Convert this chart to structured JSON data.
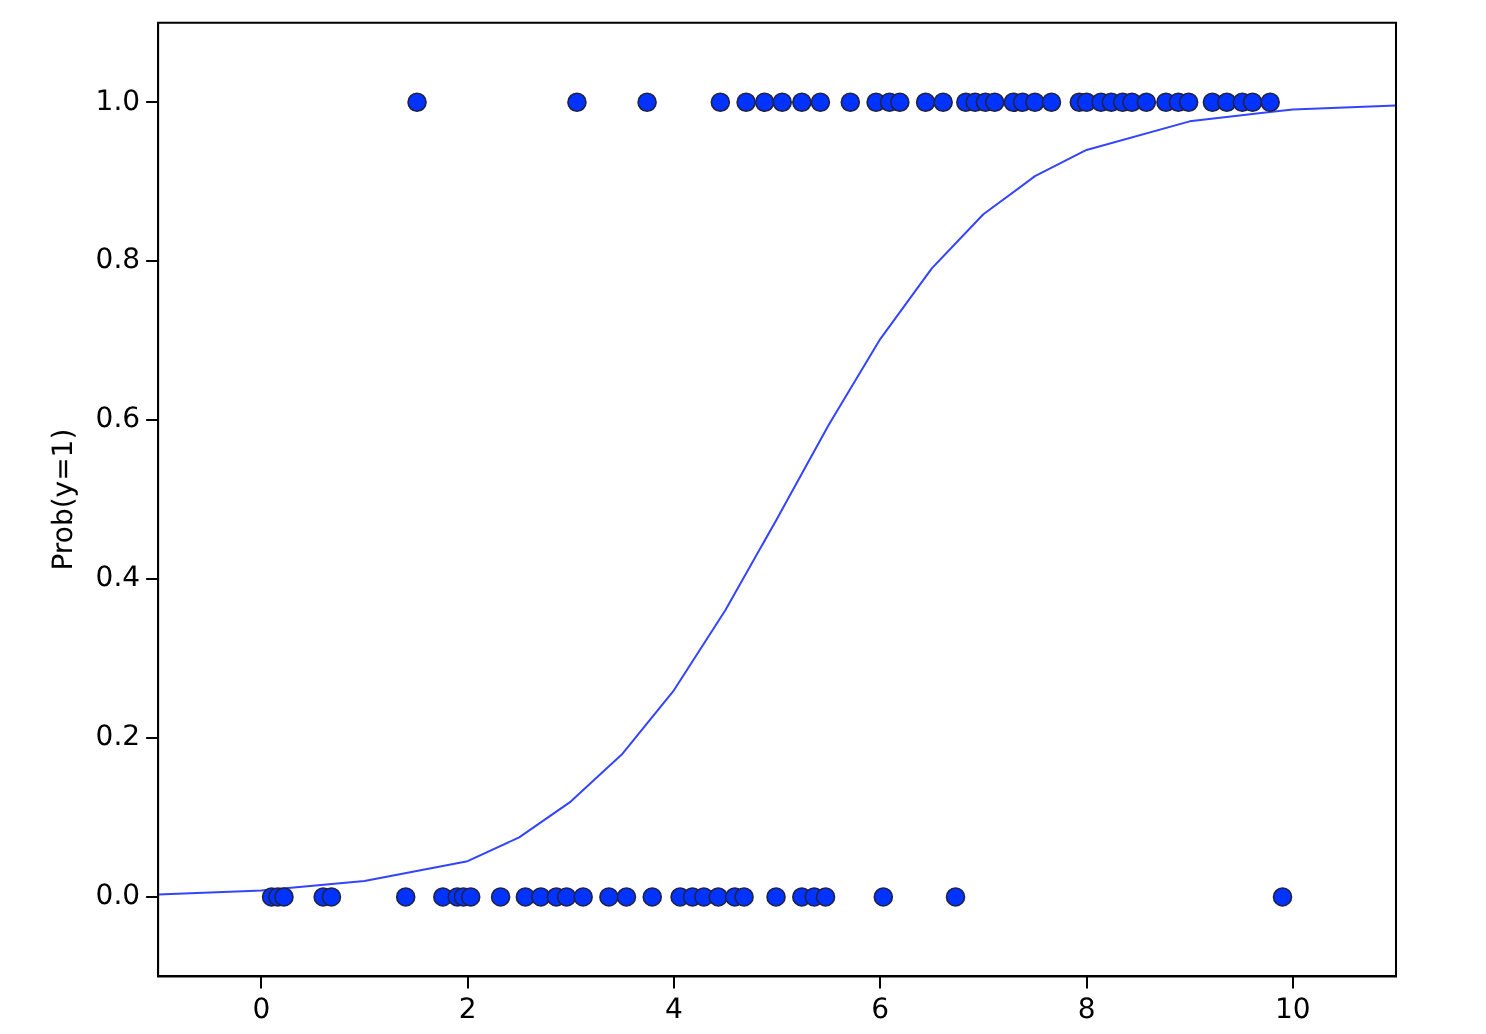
{
  "chart_data": {
    "type": "scatter",
    "ylabel": "Prob(y=1)",
    "xlim": [
      -1,
      11
    ],
    "ylim": [
      -0.1,
      1.1
    ],
    "xticks": [
      0,
      2,
      4,
      6,
      8,
      10
    ],
    "yticks": [
      {
        "value": 0,
        "label": "0.0"
      },
      {
        "value": 0.2,
        "label": "0.2"
      },
      {
        "value": 0.4,
        "label": "0.4"
      },
      {
        "value": 0.6,
        "label": "0.6"
      },
      {
        "value": 0.8,
        "label": "0.8"
      },
      {
        "value": 1,
        "label": "1.0"
      }
    ],
    "grid": false,
    "legend": false,
    "marker": "circle",
    "series": [
      {
        "color": "#0033ff",
        "x": [
          1.51,
          3.06,
          3.74,
          4.45,
          4.7,
          4.88,
          5.05,
          5.24,
          5.42,
          5.71,
          5.96,
          6.09,
          6.19,
          6.44,
          6.61,
          6.83,
          6.92,
          7.02,
          7.11,
          7.29,
          7.38,
          7.5,
          7.66,
          7.93,
          8.0,
          8.14,
          8.24,
          8.35,
          8.44,
          8.58,
          8.77,
          8.89,
          8.99,
          9.22,
          9.36,
          9.51,
          9.61,
          9.78,
          0.1,
          0.16,
          0.22,
          0.6,
          0.68,
          1.4,
          1.76,
          1.9,
          1.96,
          2.03,
          2.32,
          2.56,
          2.71,
          2.86,
          2.96,
          3.12,
          3.37,
          3.54,
          3.79,
          4.06,
          4.18,
          4.29,
          4.43,
          4.59,
          4.68,
          4.99,
          5.24,
          5.36,
          5.47,
          6.03,
          6.73,
          9.9
        ],
        "values": [
          1,
          1,
          1,
          1,
          1,
          1,
          1,
          1,
          1,
          1,
          1,
          1,
          1,
          1,
          1,
          1,
          1,
          1,
          1,
          1,
          1,
          1,
          1,
          1,
          1,
          1,
          1,
          1,
          1,
          1,
          1,
          1,
          1,
          1,
          1,
          1,
          1,
          1,
          0,
          0,
          0,
          0,
          0,
          0,
          0,
          0,
          0,
          0,
          0,
          0,
          0,
          0,
          0,
          0,
          0,
          0,
          0,
          0,
          0,
          0,
          0,
          0,
          0,
          0,
          0,
          0,
          0,
          0,
          0,
          0
        ]
      },
      {
        "type": "line",
        "color": "#3344ff",
        "marker": "none",
        "x": [
          -1,
          0,
          1,
          2,
          2.5,
          3,
          3.5,
          4,
          4.5,
          5,
          5.5,
          6,
          6.5,
          7,
          7.5,
          8,
          9,
          10,
          11
        ],
        "values": [
          0.003,
          0.008,
          0.02,
          0.045,
          0.075,
          0.12,
          0.18,
          0.26,
          0.361,
          0.476,
          0.594,
          0.702,
          0.791,
          0.859,
          0.907,
          0.94,
          0.976,
          0.991,
          0.996
        ]
      }
    ]
  }
}
